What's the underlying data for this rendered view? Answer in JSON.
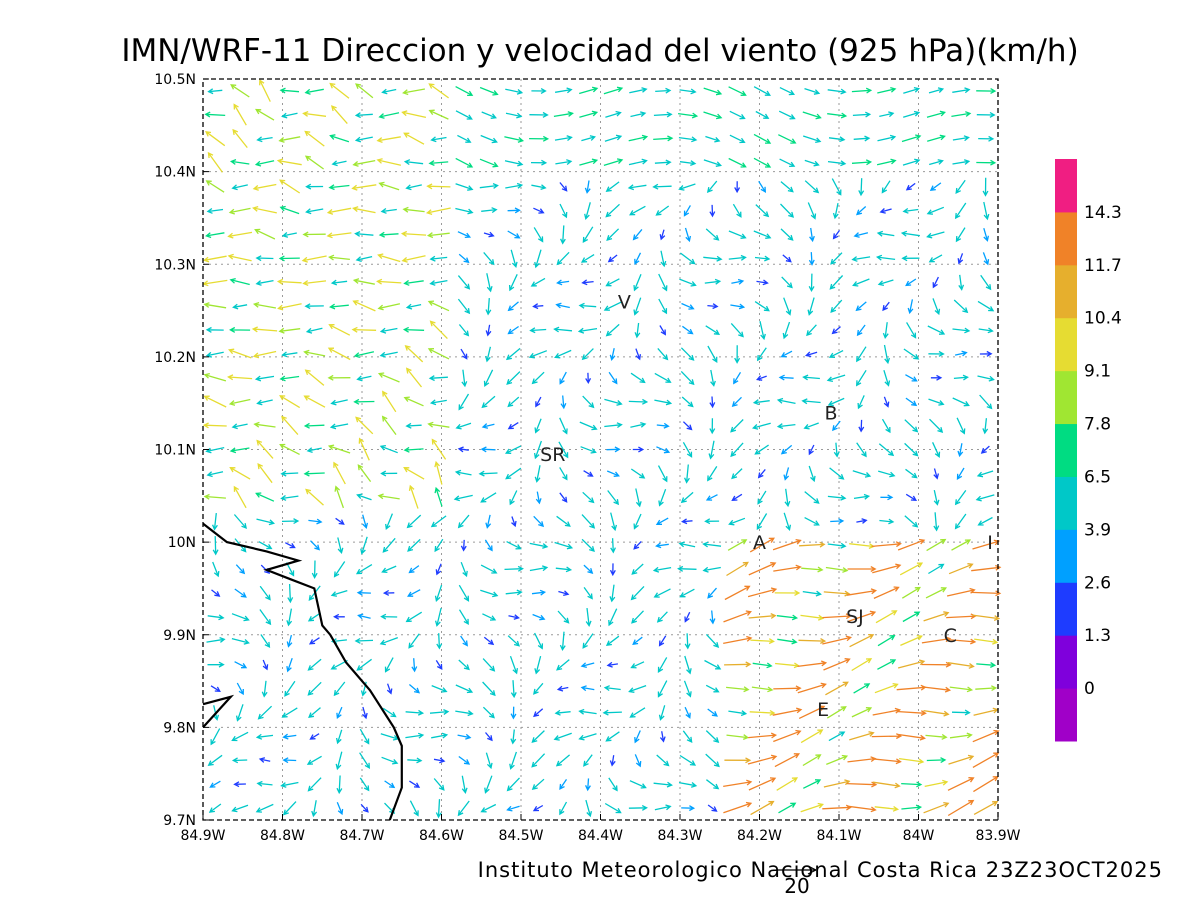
{
  "title": "IMN/WRF-11 Direccion y velocidad del viento (925 hPa)(km/h)",
  "footer": {
    "credit": "Instituto Meteorologico Nacional Costa Rica 23Z23OCT2025",
    "reference_vector_value": "20"
  },
  "map": {
    "lon_range": [
      -84.9,
      -83.9
    ],
    "lat_range": [
      9.7,
      10.5
    ],
    "grid": true,
    "x_ticks": [
      {
        "value": -84.9,
        "label": "84.9W"
      },
      {
        "value": -84.8,
        "label": "84.8W"
      },
      {
        "value": -84.7,
        "label": "84.7W"
      },
      {
        "value": -84.6,
        "label": "84.6W"
      },
      {
        "value": -84.5,
        "label": "84.5W"
      },
      {
        "value": -84.4,
        "label": "84.4W"
      },
      {
        "value": -84.3,
        "label": "84.3W"
      },
      {
        "value": -84.2,
        "label": "84.2W"
      },
      {
        "value": -84.1,
        "label": "84.1W"
      },
      {
        "value": -84.0,
        "label": "84W"
      },
      {
        "value": -83.9,
        "label": "83.9W"
      }
    ],
    "y_ticks": [
      {
        "value": 10.5,
        "label": "10.5N"
      },
      {
        "value": 10.4,
        "label": "10.4N"
      },
      {
        "value": 10.3,
        "label": "10.3N"
      },
      {
        "value": 10.2,
        "label": "10.2N"
      },
      {
        "value": 10.1,
        "label": "10.1N"
      },
      {
        "value": 10.0,
        "label": "10N"
      },
      {
        "value": 9.9,
        "label": "9.9N"
      },
      {
        "value": 9.8,
        "label": "9.8N"
      },
      {
        "value": 9.7,
        "label": "9.7N"
      }
    ],
    "places": [
      {
        "label": "V",
        "lon": -84.37,
        "lat": 10.26
      },
      {
        "label": "B",
        "lon": -84.11,
        "lat": 10.14
      },
      {
        "label": "SR",
        "lon": -84.46,
        "lat": 10.095
      },
      {
        "label": "A",
        "lon": -84.2,
        "lat": 10.0
      },
      {
        "label": "I",
        "lon": -83.91,
        "lat": 10.0
      },
      {
        "label": "SJ",
        "lon": -84.08,
        "lat": 9.92
      },
      {
        "label": "C",
        "lon": -83.96,
        "lat": 9.9
      },
      {
        "label": "E",
        "lon": -84.12,
        "lat": 9.82
      }
    ],
    "coastline_main": [
      [
        -84.9,
        10.02
      ],
      [
        -84.87,
        10.0
      ],
      [
        -84.82,
        9.99
      ],
      [
        -84.78,
        9.98
      ],
      [
        -84.82,
        9.97
      ],
      [
        -84.79,
        9.96
      ],
      [
        -84.76,
        9.95
      ],
      [
        -84.75,
        9.91
      ],
      [
        -84.74,
        9.9
      ],
      [
        -84.72,
        9.87
      ],
      [
        -84.69,
        9.84
      ],
      [
        -84.66,
        9.8
      ],
      [
        -84.65,
        9.78
      ],
      [
        -84.65,
        9.735
      ],
      [
        -84.665,
        9.7
      ]
    ],
    "coastline_small": [
      [
        -84.9,
        9.825
      ],
      [
        -84.865,
        9.833
      ],
      [
        -84.9,
        9.8
      ]
    ],
    "colorbar": {
      "colors": [
        "#a000c8",
        "#7f00dc",
        "#1e3cff",
        "#00a0ff",
        "#00c8c8",
        "#00dc82",
        "#a0e632",
        "#e6dc32",
        "#e6af2d",
        "#f08228",
        "#f01e82"
      ],
      "labels": [
        "0",
        "1.3",
        "2.6",
        "3.9",
        "6.5",
        "7.8",
        "9.1",
        "10.4",
        "11.7",
        "14.3"
      ]
    }
  }
}
